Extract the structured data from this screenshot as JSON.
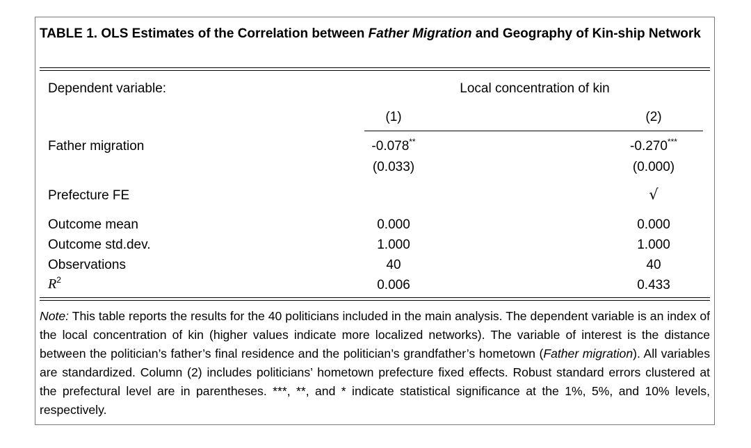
{
  "caption": {
    "label": "TABLE 1.",
    "text_before": "OLS Estimates of the Correlation between",
    "text_italic": "Father Migration",
    "text_after": "and Geography of Kin-ship Network"
  },
  "header": {
    "dep_var_label": "Dependent variable",
    "dep_var_colon": ":",
    "dep_var_value": "Local concentration of kin",
    "columns": [
      "(1)",
      "(2)"
    ]
  },
  "rows": {
    "father_migration": {
      "label": "Father migration",
      "col1": "-0.078",
      "col1_stars": "**",
      "col2": "-0.270",
      "col2_stars": "***",
      "col1_se": "(0.033)",
      "col2_se": "(0.000)"
    },
    "prefecture_fe": {
      "label": "Prefecture FE",
      "col1": "",
      "col2": "√"
    },
    "outcome_mean": {
      "label": "Outcome mean",
      "col1": "0.000",
      "col2": "0.000"
    },
    "outcome_std": {
      "label": "Outcome std.dev.",
      "col1": "1.000",
      "col2": "1.000"
    },
    "observations": {
      "label": "Observations",
      "col1": "40",
      "col2": "40"
    },
    "r2": {
      "label_base": "R",
      "label_sup": "2",
      "col1": "0.006",
      "col2": "0.433"
    }
  },
  "note": {
    "label": "Note:",
    "text1": "This table reports the results for the 40 politicians included in the main analysis. The dependent variable is an index of the local concentration of kin (higher values indicate more localized networks). The variable of interest is the distance between the politician’s father’s final residence and the politician’s grandfather’s hometown (",
    "italic": "Father migration",
    "text2": "). All variables are standardized. Column (2) includes politicians’ hometown prefecture fixed effects. Robust standard errors clustered at the prefectural level are in parentheses. ***, **, and * indicate statistical significance at the 1%, 5%, and 10% levels, respectively."
  }
}
